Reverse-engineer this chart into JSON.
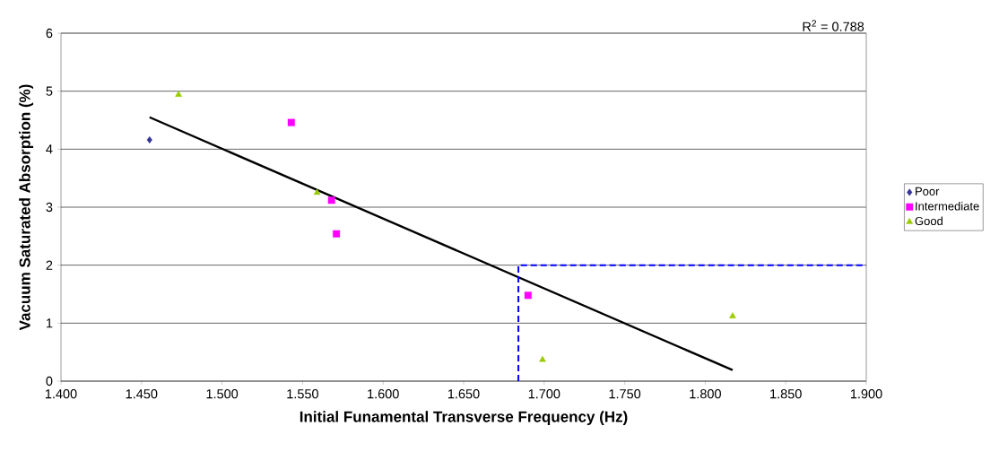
{
  "chart_data": {
    "type": "scatter",
    "xlabel": "Initial Funamental Transverse Frequency (Hz)",
    "ylabel": "Vacuum Saturated Absorption (%)",
    "annotations": [
      "R$^{2}$ = 0.788"
    ],
    "series": [
      {
        "name": "Poor",
        "color": "#333399",
        "marker": "diamond",
        "x": [
          1.455
        ],
        "values": [
          4.16
        ]
      },
      {
        "name": "Intermediate",
        "color": "#ff00ff",
        "marker": "square",
        "x": [
          1.543,
          1.568,
          1.571,
          1.69
        ],
        "values": [
          4.46,
          3.12,
          2.54,
          1.48
        ]
      },
      {
        "name": "Good",
        "color": "#99cc00",
        "marker": "triangle",
        "x": [
          1.473,
          1.559,
          1.699,
          1.817
        ],
        "values": [
          4.94,
          3.25,
          0.37,
          1.12
        ]
      },
      {
        "type": "line",
        "color": "#000000",
        "marker": "none",
        "x": [
          1.455,
          1.817
        ],
        "values": [
          4.55,
          0.19
        ]
      },
      {
        "type": "line",
        "color": "#0000ff",
        "marker": "none",
        "line_style": "dashed",
        "x": [
          1.684,
          1.684,
          1.9
        ],
        "values": [
          0,
          2,
          2
        ]
      }
    ],
    "xlim": [
      1.4,
      1.9
    ],
    "xticks": [
      {
        "value": 1.4,
        "label": "1.400"
      },
      {
        "value": 1.45,
        "label": "1.450"
      },
      {
        "value": 1.5,
        "label": "1.500"
      },
      {
        "value": 1.55,
        "label": "1.550"
      },
      {
        "value": 1.6,
        "label": "1.600"
      },
      {
        "value": 1.65,
        "label": "1.650"
      },
      {
        "value": 1.7,
        "label": "1.700"
      },
      {
        "value": 1.75,
        "label": "1.750"
      },
      {
        "value": 1.8,
        "label": "1.800"
      },
      {
        "value": 1.85,
        "label": "1.850"
      },
      {
        "value": 1.9,
        "label": "1.900"
      }
    ],
    "ylim": [
      0,
      6
    ],
    "yticks": [
      0,
      1,
      2,
      3,
      4,
      5,
      6
    ],
    "grid": "y",
    "legend": "right"
  }
}
